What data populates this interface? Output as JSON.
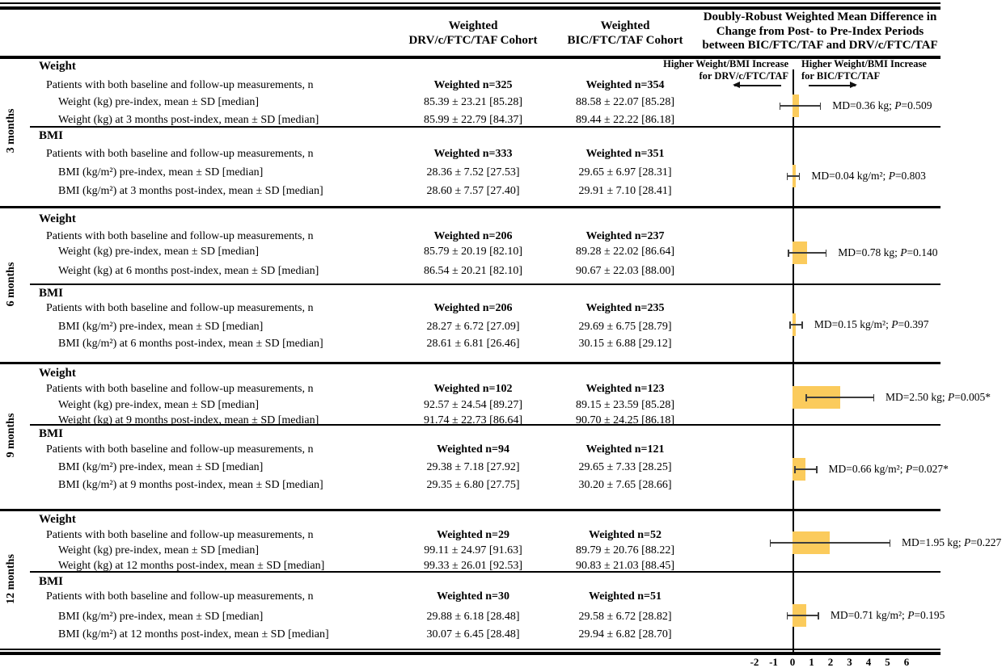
{
  "figure": {
    "columns": {
      "drv_header": [
        "Weighted",
        "DRV/c/FTC/TAF Cohort"
      ],
      "bic_header": [
        "Weighted",
        "BIC/FTC/TAF Cohort"
      ],
      "forest_header": [
        "Doubly-Robust Weighted Mean Difference in",
        "Change from Post- to Pre-Index Periods",
        "between BIC/FTC/TAF and DRV/c/FTC/TAF"
      ]
    },
    "direction_labels": {
      "left": [
        "Higher Weight/BMI Increase",
        "for DRV/c/FTC/TAF"
      ],
      "right": [
        "Higher Weight/BMI Increase",
        "for BIC/FTC/TAF"
      ]
    },
    "colors": {
      "box_fill": "#FBCB5C",
      "ci_line": "#3d3d3d",
      "rule": "#000000"
    },
    "p_symbol": "P"
  },
  "sections": [
    {
      "id": "3-months",
      "month_label": "3 months",
      "weight": {
        "header": "Weight",
        "patients_label": "Patients with both baseline and follow-up measurements, n",
        "drv_n": "Weighted n=325",
        "bic_n": "Weighted n=354",
        "rows": [
          {
            "label": "Weight (kg) pre-index, mean ± SD [median]",
            "drv": "85.39 ± 23.21 [85.28]",
            "bic": "88.58 ± 22.07 [85.28]"
          },
          {
            "label": "Weight (kg) at 3 months post-index, mean ± SD [median]",
            "drv": "85.99 ± 22.79 [84.37]",
            "bic": "89.44 ± 22.22 [86.18]"
          }
        ],
        "forest": {
          "md_text": "MD=0.36 kg; ",
          "p_text": "=0.509",
          "md": 0.36,
          "ci_low": -0.7,
          "ci_high": 1.5
        }
      },
      "bmi": {
        "header": "BMI",
        "patients_label": "Patients with both baseline and follow-up measurements, n",
        "drv_n": "Weighted n=333",
        "bic_n": "Weighted  n=351",
        "rows": [
          {
            "label": "BMI (kg/m²) pre-index, mean ± SD [median]",
            "drv": "28.36 ± 7.52 [27.53]",
            "bic": "29.65 ± 6.97 [28.31]"
          },
          {
            "label": "BMI (kg/m²) at 3 months post-index, mean ± SD [median]",
            "drv": "28.60 ± 7.57 [27.40]",
            "bic": "29.91 ± 7.10 [28.41]"
          }
        ],
        "forest": {
          "md_text": "MD=0.04 kg/m²; ",
          "p_text": "=0.803",
          "md": 0.04,
          "ci_low": -0.3,
          "ci_high": 0.4
        }
      }
    },
    {
      "id": "6-months",
      "month_label": "6 months",
      "weight": {
        "header": "Weight",
        "patients_label": "Patients with both baseline and follow-up measurements, n",
        "drv_n": "Weighted n=206",
        "bic_n": "Weighted n=237",
        "rows": [
          {
            "label": "Weight (kg) pre-index, mean ± SD [median]",
            "drv": "85.79 ± 20.19 [82.10]",
            "bic": "89.28 ± 22.02 [86.64]"
          },
          {
            "label": "Weight (kg) at 6 months post-index, mean ± SD [median]",
            "drv": "86.54 ± 20.21 [82.10]",
            "bic": "90.67 ± 22.03 [88.00]"
          }
        ],
        "forest": {
          "md_text": "MD=0.78 kg; ",
          "p_text": "=0.140",
          "md": 0.78,
          "ci_low": -0.25,
          "ci_high": 1.8
        }
      },
      "bmi": {
        "header": "BMI",
        "patients_label": "Patients with both baseline and follow-up measurements, n",
        "drv_n": "Weighted n=206",
        "bic_n": "Weighted  n=235",
        "rows": [
          {
            "label": "BMI (kg/m²) pre-index, mean ± SD [median]",
            "drv": "28.27 ± 6.72 [27.09]",
            "bic": "29.69 ± 6.75 [28.79]"
          },
          {
            "label": "BMI (kg/m²) at 6 months post-index, mean ± SD [median]",
            "drv": "28.61 ± 6.81 [26.46]",
            "bic": "30.15 ± 6.88 [29.12]"
          }
        ],
        "forest": {
          "md_text": "MD=0.15 kg/m²; ",
          "p_text": "=0.397",
          "md": 0.15,
          "ci_low": -0.15,
          "ci_high": 0.55
        }
      }
    },
    {
      "id": "9-months",
      "month_label": "9 months",
      "weight": {
        "header": "Weight",
        "patients_label": "Patients with both baseline and follow-up measurements, n",
        "drv_n": "Weighted n=102",
        "bic_n": "Weighted n=123",
        "rows": [
          {
            "label": "Weight (kg) pre-index, mean ± SD [median]",
            "drv": "92.57 ± 24.54 [89.27]",
            "bic": "89.15 ± 23.59 [85.28]"
          },
          {
            "label": "Weight (kg) at 9 months post-index, mean ± SD [median]",
            "drv": "91.74 ± 22.73 [86.64]",
            "bic": "90.70 ± 24.25 [86.18]"
          }
        ],
        "forest": {
          "md_text": "MD=2.50 kg; ",
          "p_text": "=0.005*",
          "md": 2.5,
          "ci_low": 0.7,
          "ci_high": 4.3
        }
      },
      "bmi": {
        "header": "BMI",
        "patients_label": "Patients with both baseline and follow-up measurements, n",
        "drv_n": "Weighted n=94",
        "bic_n": "Weighted  n=121",
        "rows": [
          {
            "label": "BMI (kg/m²) pre-index, mean ± SD [median]",
            "drv": "29.38 ± 7.18 [27.92]",
            "bic": "29.65 ± 7.33 [28.25]"
          },
          {
            "label": "BMI (kg/m²) at 9 months post-index, mean ± SD [median]",
            "drv": "29.35 ± 6.80 [27.75]",
            "bic": "30.20 ± 7.65 [28.66]"
          }
        ],
        "forest": {
          "md_text": "MD=0.66 kg/m²; ",
          "p_text": "=0.027*",
          "md": 0.66,
          "ci_low": 0.1,
          "ci_high": 1.3
        }
      }
    },
    {
      "id": "12-months",
      "month_label": "12 months",
      "weight": {
        "header": "Weight",
        "patients_label": "Patients with both baseline and follow-up measurements, n",
        "drv_n": "Weighted n=29",
        "bic_n": "Weighted n=52",
        "rows": [
          {
            "label": "Weight (kg) pre-index, mean ± SD [median]",
            "drv": "99.11 ± 24.97 [91.63]",
            "bic": "89.79 ± 20.76 [88.22]"
          },
          {
            "label": "Weight (kg) at 12 months post-index, mean ± SD [median]",
            "drv": "99.33 ± 26.01 [92.53]",
            "bic": "90.83 ± 21.03 [88.45]"
          }
        ],
        "forest": {
          "md_text": "MD=1.95 kg; ",
          "p_text": "=0.227",
          "md": 1.95,
          "ci_low": -1.2,
          "ci_high": 5.15
        }
      },
      "bmi": {
        "header": "BMI",
        "patients_label": "Patients with both baseline and follow-up measurements, n",
        "drv_n": "Weighted n=30",
        "bic_n": "Weighted n=51",
        "rows": [
          {
            "label": "BMI (kg/m²) pre-index, mean ± SD [median]",
            "drv": "29.88 ± 6.18 [28.48]",
            "bic": "29.58 ± 6.72 [28.82]"
          },
          {
            "label": "BMI (kg/m²) at 12 months post-index, mean ± SD [median]",
            "drv": "30.07 ± 6.45 [28.48]",
            "bic": "29.94 ± 6.82 [28.70]"
          }
        ],
        "forest": {
          "md_text": "MD=0.71 kg/m²; ",
          "p_text": "=0.195",
          "md": 0.71,
          "ci_low": -0.3,
          "ci_high": 1.4
        }
      }
    }
  ],
  "axis": {
    "ticks": [
      "-2",
      "-1",
      "0",
      "1",
      "2",
      "3",
      "4",
      "5",
      "6"
    ],
    "values": [
      -2,
      -1,
      0,
      1,
      2,
      3,
      4,
      5,
      6
    ]
  },
  "chart_data": {
    "type": "forest",
    "title": "Doubly-Robust Weighted Mean Difference in Change from Post- to Pre-Index Periods between BIC/FTC/TAF and DRV/c/FTC/TAF",
    "direction_left": "Higher Weight/BMI Increase for DRV/c/FTC/TAF",
    "direction_right": "Higher Weight/BMI Increase for BIC/FTC/TAF",
    "x_axis": {
      "ticks": [
        -2,
        -1,
        0,
        1,
        2,
        3,
        4,
        5,
        6
      ],
      "zero_line": 0
    },
    "legend_position": "none",
    "grid": false,
    "rows": [
      {
        "timepoint": "3 months",
        "outcome": "Weight",
        "md": 0.36,
        "unit": "kg",
        "p": "0.509",
        "significant": false,
        "ci_est": [
          -0.7,
          1.5
        ]
      },
      {
        "timepoint": "3 months",
        "outcome": "BMI",
        "md": 0.04,
        "unit": "kg/m²",
        "p": "0.803",
        "significant": false,
        "ci_est": [
          -0.3,
          0.4
        ]
      },
      {
        "timepoint": "6 months",
        "outcome": "Weight",
        "md": 0.78,
        "unit": "kg",
        "p": "0.140",
        "significant": false,
        "ci_est": [
          -0.25,
          1.8
        ]
      },
      {
        "timepoint": "6 months",
        "outcome": "BMI",
        "md": 0.15,
        "unit": "kg/m²",
        "p": "0.397",
        "significant": false,
        "ci_est": [
          -0.15,
          0.55
        ]
      },
      {
        "timepoint": "9 months",
        "outcome": "Weight",
        "md": 2.5,
        "unit": "kg",
        "p": "0.005*",
        "significant": true,
        "ci_est": [
          0.7,
          4.3
        ]
      },
      {
        "timepoint": "9 months",
        "outcome": "BMI",
        "md": 0.66,
        "unit": "kg/m²",
        "p": "0.027*",
        "significant": true,
        "ci_est": [
          0.1,
          1.3
        ]
      },
      {
        "timepoint": "12 months",
        "outcome": "Weight",
        "md": 1.95,
        "unit": "kg",
        "p": "0.227",
        "significant": false,
        "ci_est": [
          -1.2,
          5.15
        ]
      },
      {
        "timepoint": "12 months",
        "outcome": "BMI",
        "md": 0.71,
        "unit": "kg/m²",
        "p": "0.195",
        "significant": false,
        "ci_est": [
          -0.3,
          1.4
        ]
      }
    ]
  }
}
